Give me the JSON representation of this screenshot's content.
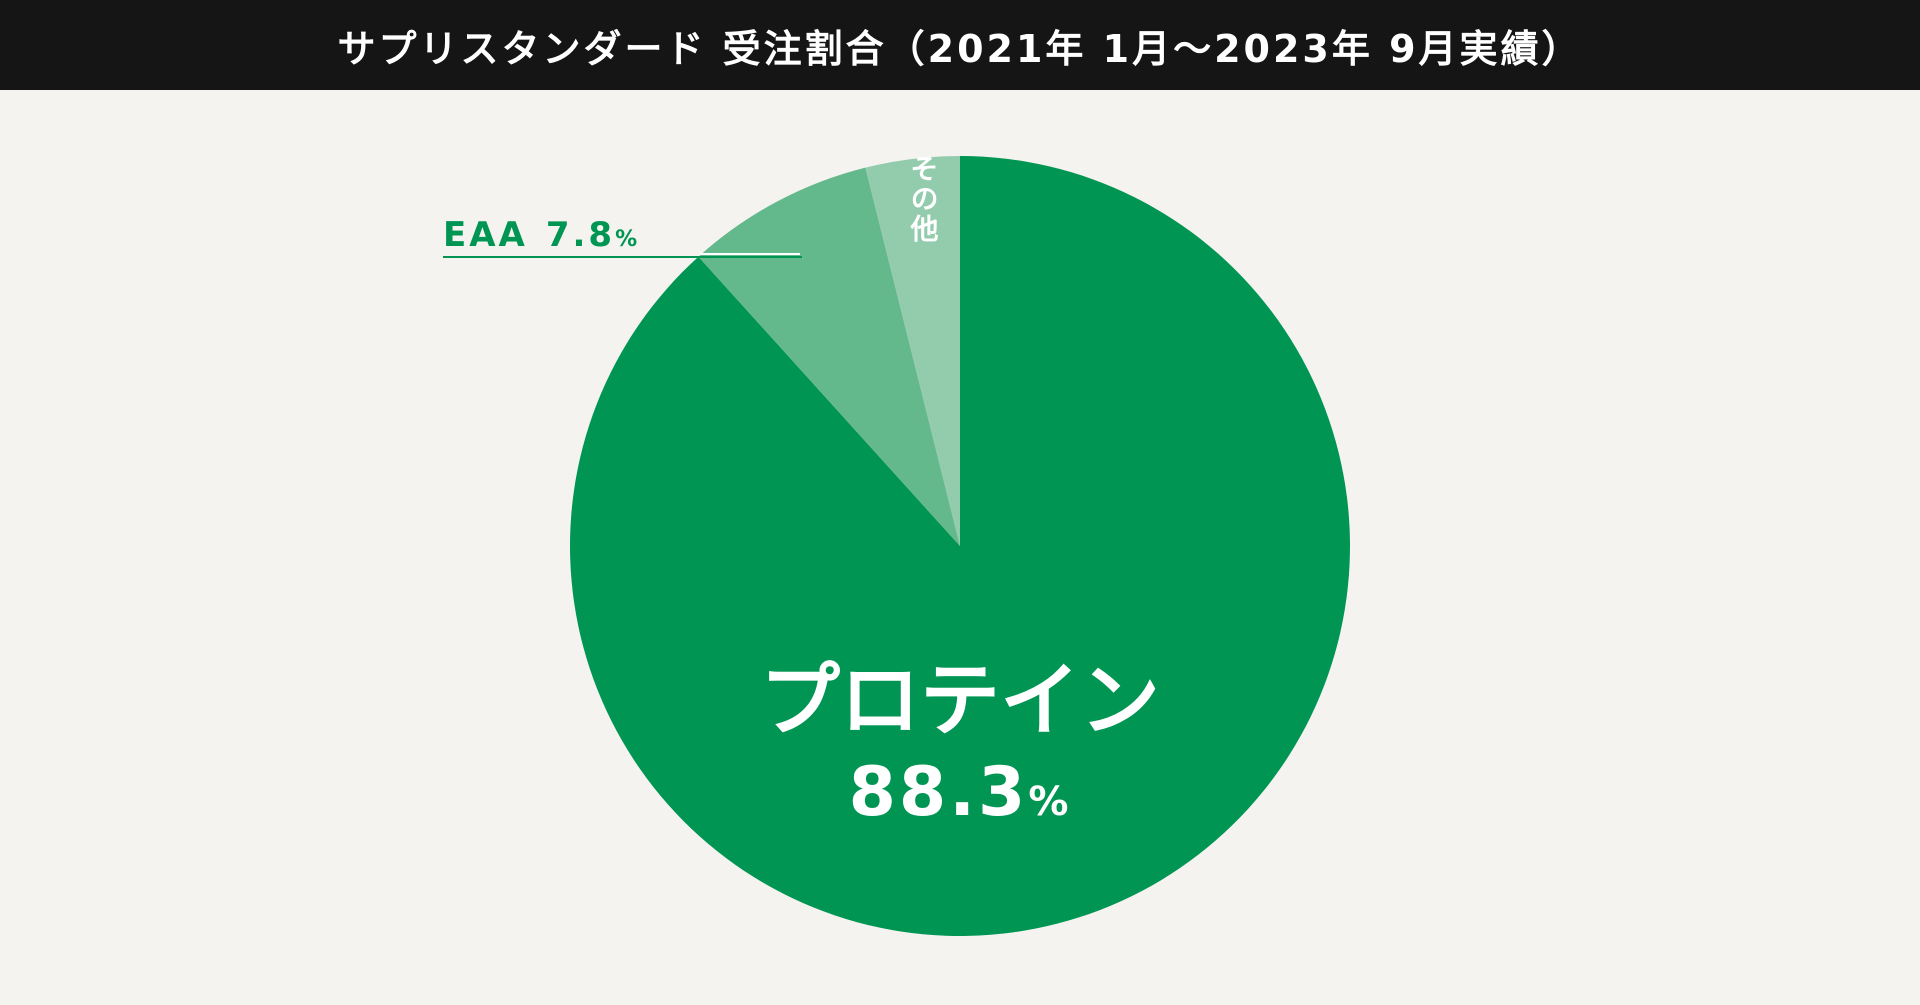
{
  "chart_data": {
    "type": "pie",
    "title": "サプリスタンダード 受注割合（2021年 1月～2023年 9月実績）",
    "slices": [
      {
        "label": "プロテイン",
        "value": 88.3,
        "value_label": "88.3",
        "unit": "%",
        "color": "#009553"
      },
      {
        "label": "EAA",
        "value": 7.8,
        "value_label": "7.8",
        "unit": "%",
        "color": "#64b98c"
      },
      {
        "label": "その他",
        "value": 3.9,
        "color": "#93cbad"
      }
    ],
    "start": "12 o'clock",
    "direction": "clockwise",
    "callout_color": "#009553",
    "inner_label_color": "#ffffff"
  }
}
